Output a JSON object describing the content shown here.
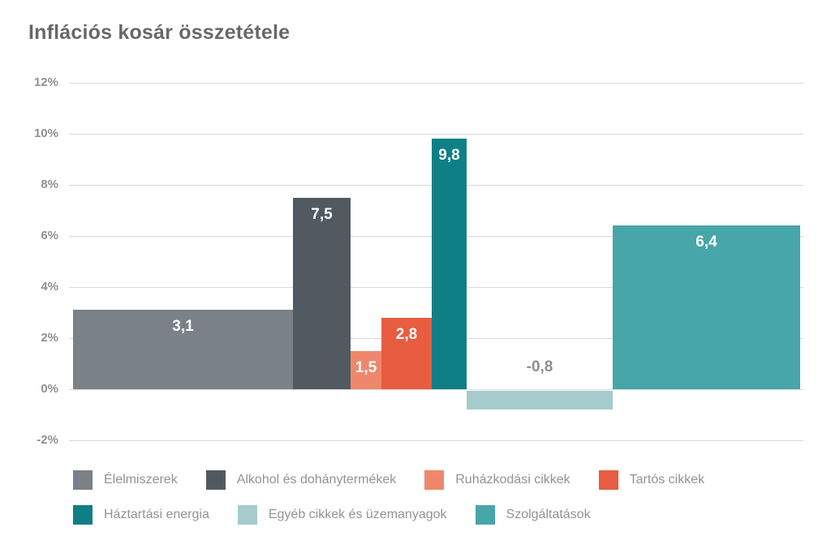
{
  "page": {
    "title": "Inflációs kosár összetétele"
  },
  "chart_data": {
    "type": "bar",
    "variant": "variable-width bars (width proportional to weight in the inflation basket)",
    "title": "Inflációs kosár összetétele",
    "xlabel": "",
    "ylabel": "",
    "ylim": [
      -2,
      12
    ],
    "grid": true,
    "legend_position": "bottom",
    "yticks": [
      {
        "value": 12,
        "label": "12%"
      },
      {
        "value": 10,
        "label": "10%"
      },
      {
        "value": 8,
        "label": "8%"
      },
      {
        "value": 6,
        "label": "6%"
      },
      {
        "value": 4,
        "label": "4%"
      },
      {
        "value": 2,
        "label": "2%"
      },
      {
        "value": 0,
        "label": "0%"
      },
      {
        "value": -2,
        "label": "-2%"
      }
    ],
    "series": [
      {
        "name": "Élelmiszerek",
        "value": 3.1,
        "value_label": "3,1",
        "color": "#7a8187",
        "weight_frac": 0.301,
        "label_placement": "inside-top",
        "label_color": "#ffffff"
      },
      {
        "name": "Alkohol és dohánytermékek",
        "value": 7.5,
        "value_label": "7,5",
        "color": "#515a61",
        "weight_frac": 0.079,
        "label_placement": "inside-top",
        "label_color": "#ffffff"
      },
      {
        "name": "Ruházkodási cikkek",
        "value": 1.5,
        "value_label": "1,5",
        "color": "#f0876d",
        "weight_frac": 0.042,
        "label_placement": "inside-top",
        "label_color": "#ffffff"
      },
      {
        "name": "Tartós cikkek",
        "value": 2.8,
        "value_label": "2,8",
        "color": "#e85c40",
        "weight_frac": 0.069,
        "label_placement": "inside-top",
        "label_color": "#ffffff"
      },
      {
        "name": "Háztartási energia",
        "value": 9.8,
        "value_label": "9,8",
        "color": "#0f7f86",
        "weight_frac": 0.048,
        "label_placement": "inside-top",
        "label_color": "#ffffff"
      },
      {
        "name": "Egyéb cikkek és üzemanyagok",
        "value": -0.8,
        "value_label": "-0,8",
        "color": "#a5cbcd",
        "weight_frac": 0.2,
        "label_placement": "above-axis",
        "label_color": "#8a8f93"
      },
      {
        "name": "Szolgáltatások",
        "value": 6.4,
        "value_label": "6,4",
        "color": "#47a6a9",
        "weight_frac": 0.257,
        "label_placement": "inside-top",
        "label_color": "#ffffff"
      }
    ],
    "legend_rows": [
      [
        0,
        1,
        2,
        3
      ],
      [
        4,
        5,
        6
      ]
    ]
  },
  "style": {
    "grid_color": "#d9d9d9",
    "axis_label_color": "#8c9194",
    "title_color": "#686868",
    "background": "#ffffff"
  }
}
